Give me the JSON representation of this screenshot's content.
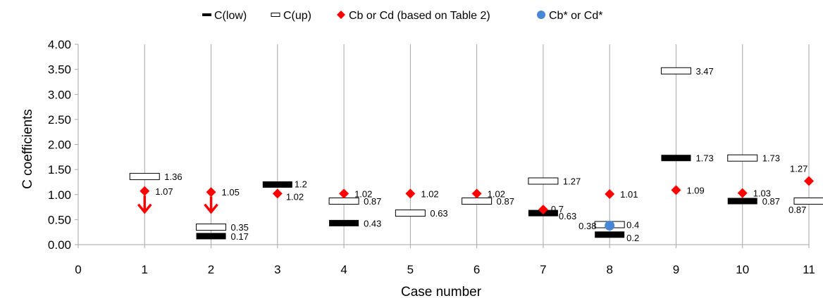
{
  "chart_data": {
    "type": "scatter",
    "xlabel": "Case number",
    "ylabel": "C coefficients",
    "xlim": [
      0,
      11
    ],
    "ylim": [
      0,
      4
    ],
    "x_ticks": [
      "0",
      "1",
      "2",
      "3",
      "4",
      "5",
      "6",
      "7",
      "8",
      "9",
      "10",
      "11"
    ],
    "y_ticks": [
      "0.00",
      "0.50",
      "1.00",
      "1.50",
      "2.00",
      "2.50",
      "3.00",
      "3.50",
      "4.00"
    ],
    "grid": "vertical",
    "legend_position": "top",
    "colors": {
      "low": "#000000",
      "up": "#ffffff",
      "cb": "#ff0000",
      "cbstar": "#4a86d6",
      "arrow": "#ff0000",
      "grid": "#a6a6a6"
    },
    "series": [
      {
        "name": "C(low)",
        "marker": "filled-bar",
        "points": [
          {
            "x": 2,
            "y": 0.17,
            "label": "0.17"
          },
          {
            "x": 3,
            "y": 1.2,
            "label": "1.2"
          },
          {
            "x": 4,
            "y": 0.43,
            "label": "0.43"
          },
          {
            "x": 7,
            "y": 0.63,
            "label": "0.63"
          },
          {
            "x": 8,
            "y": 0.2,
            "label": "0.2"
          },
          {
            "x": 9,
            "y": 1.73,
            "label": "1.73"
          },
          {
            "x": 10,
            "y": 0.87,
            "label": "0.87"
          }
        ]
      },
      {
        "name": "C(up)",
        "marker": "hollow-bar",
        "points": [
          {
            "x": 1,
            "y": 1.36,
            "label": "1.36"
          },
          {
            "x": 2,
            "y": 0.35,
            "label": "0.35"
          },
          {
            "x": 4,
            "y": 0.87,
            "label": "0.87"
          },
          {
            "x": 5,
            "y": 0.63,
            "label": "0.63"
          },
          {
            "x": 6,
            "y": 0.87,
            "label": "0.87"
          },
          {
            "x": 7,
            "y": 1.27,
            "label": "1.27"
          },
          {
            "x": 8,
            "y": 0.4,
            "label": "0.4"
          },
          {
            "x": 9,
            "y": 3.47,
            "label": "3.47"
          },
          {
            "x": 10,
            "y": 1.73,
            "label": "1.73"
          },
          {
            "x": 11,
            "y": 0.87,
            "label": "0.87"
          }
        ]
      },
      {
        "name": "Cb or Cd (based on Table 2)",
        "marker": "diamond",
        "points": [
          {
            "x": 1,
            "y": 1.07,
            "label": "1.07"
          },
          {
            "x": 2,
            "y": 1.05,
            "label": "1.05"
          },
          {
            "x": 3,
            "y": 1.02,
            "label": "1.02"
          },
          {
            "x": 4,
            "y": 1.02,
            "label": "1.02"
          },
          {
            "x": 5,
            "y": 1.02,
            "label": "1.02"
          },
          {
            "x": 6,
            "y": 1.02,
            "label": "1.02"
          },
          {
            "x": 7,
            "y": 0.7,
            "label": "0.7"
          },
          {
            "x": 8,
            "y": 1.01,
            "label": "1.01"
          },
          {
            "x": 9,
            "y": 1.09,
            "label": "1.09"
          },
          {
            "x": 10,
            "y": 1.03,
            "label": "1.03"
          },
          {
            "x": 11,
            "y": 1.27,
            "label": "1.27"
          }
        ]
      },
      {
        "name": "Cb* or Cd*",
        "marker": "circle",
        "points": [
          {
            "x": 8,
            "y": 0.38,
            "label": "0.38"
          }
        ]
      }
    ],
    "annotations": [
      {
        "type": "arrow-down",
        "x": 1,
        "y_from": 0.98,
        "y_to": 0.65
      },
      {
        "type": "arrow-down",
        "x": 2,
        "y_from": 0.96,
        "y_to": 0.65
      }
    ]
  }
}
